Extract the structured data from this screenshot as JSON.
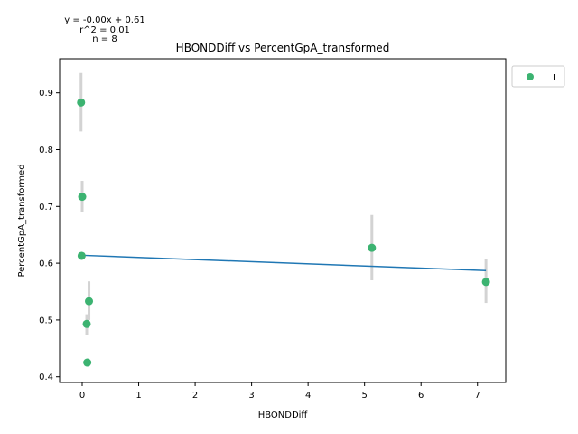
{
  "chart_data": {
    "type": "scatter",
    "title": "HBONDDiff vs PercentGpA_transformed",
    "xlabel": "HBONDDiff",
    "ylabel": "PercentGpA_transformed",
    "xlim": [
      -0.4,
      7.5
    ],
    "ylim": [
      0.39,
      0.96
    ],
    "xticks": [
      0,
      1,
      2,
      3,
      4,
      5,
      6,
      7
    ],
    "yticks": [
      0.4,
      0.5,
      0.6,
      0.7,
      0.8,
      0.9
    ],
    "annotations": [
      "y = -0.00x + 0.61",
      "r^2 = 0.01",
      "n = 8"
    ],
    "legend": {
      "placement": "outside-top-right",
      "entries": [
        "L"
      ]
    },
    "grid": false,
    "colors": {
      "points": "#3cb371",
      "fit_line": "#1f77b4",
      "error_bars": "#d3d3d3"
    },
    "fit_line": {
      "x": [
        -0.03,
        7.15
      ],
      "y": [
        0.614,
        0.587
      ]
    },
    "series": [
      {
        "name": "L",
        "points": [
          {
            "x": -0.02,
            "y": 0.883,
            "err_low": 0.832,
            "err_high": 0.935
          },
          {
            "x": 0.0,
            "y": 0.717,
            "err_low": 0.69,
            "err_high": 0.745
          },
          {
            "x": -0.01,
            "y": 0.613,
            "err_low": 0.613,
            "err_high": 0.613
          },
          {
            "x": 0.12,
            "y": 0.533,
            "err_low": 0.5,
            "err_high": 0.568
          },
          {
            "x": 0.08,
            "y": 0.493,
            "err_low": 0.473,
            "err_high": 0.51
          },
          {
            "x": 0.09,
            "y": 0.425,
            "err_low": 0.425,
            "err_high": 0.425
          },
          {
            "x": 5.13,
            "y": 0.627,
            "err_low": 0.57,
            "err_high": 0.685
          },
          {
            "x": 7.15,
            "y": 0.567,
            "err_low": 0.53,
            "err_high": 0.607
          }
        ]
      }
    ]
  }
}
